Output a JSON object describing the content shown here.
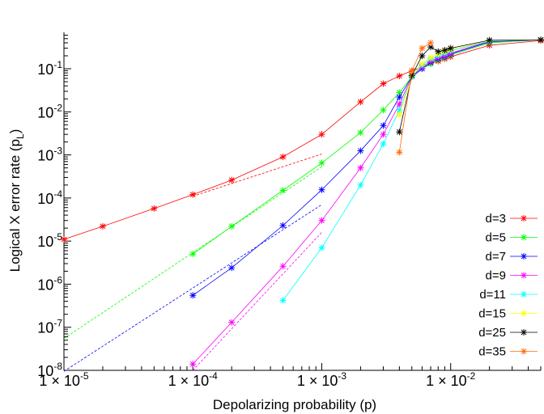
{
  "chart_data": {
    "type": "line",
    "title": "",
    "xlabel": "Depolarizing probability (p)",
    "ylabel": "Logical X error rate (p",
    "ylabel_subscript": "L",
    "ylabel_close": ")",
    "x_scale": "log",
    "y_scale": "log",
    "xlim": [
      1e-05,
      0.05
    ],
    "ylim": [
      1e-08,
      0.7
    ],
    "grid": false,
    "legend_position": "bottom-right",
    "x_ticks": [
      {
        "value": 1e-05,
        "mantissa": "1",
        "times": "×",
        "base": "10",
        "exp": "-5"
      },
      {
        "value": 0.0001,
        "mantissa": "1",
        "times": "×",
        "base": "10",
        "exp": "-4"
      },
      {
        "value": 0.001,
        "mantissa": "1",
        "times": "×",
        "base": "10",
        "exp": "-3"
      },
      {
        "value": 0.01,
        "mantissa": "1",
        "times": "×",
        "base": "10",
        "exp": "-2"
      }
    ],
    "y_ticks": [
      {
        "value": 1e-08,
        "base": "10",
        "exp": "-8"
      },
      {
        "value": 1e-07,
        "base": "10",
        "exp": "-7"
      },
      {
        "value": 1e-06,
        "base": "10",
        "exp": "-6"
      },
      {
        "value": 1e-05,
        "base": "10",
        "exp": "-5"
      },
      {
        "value": 0.0001,
        "base": "10",
        "exp": "-4"
      },
      {
        "value": 0.001,
        "base": "10",
        "exp": "-3"
      },
      {
        "value": 0.01,
        "base": "10",
        "exp": "-2"
      },
      {
        "value": 0.1,
        "base": "10",
        "exp": "-1"
      }
    ],
    "series": [
      {
        "name": "d=3",
        "color": "#ff0000",
        "points": [
          [
            1e-05,
            1.1e-05
          ],
          [
            2e-05,
            2.2e-05
          ],
          [
            5e-05,
            5.7e-05
          ],
          [
            0.0001,
            0.00012
          ],
          [
            0.0002,
            0.00026
          ],
          [
            0.0005,
            0.0009
          ],
          [
            0.001,
            0.003
          ],
          [
            0.002,
            0.017
          ],
          [
            0.003,
            0.045
          ],
          [
            0.004,
            0.068
          ],
          [
            0.005,
            0.09
          ],
          [
            0.006,
            0.11
          ],
          [
            0.007,
            0.13
          ],
          [
            0.008,
            0.15
          ],
          [
            0.009,
            0.17
          ],
          [
            0.01,
            0.19
          ],
          [
            0.02,
            0.35
          ],
          [
            0.05,
            0.45
          ]
        ],
        "fit": [
          [
            0.0001,
            0.00011
          ],
          [
            0.001,
            0.00105
          ]
        ]
      },
      {
        "name": "d=5",
        "color": "#00ff00",
        "points": [
          [
            0.0001,
            5e-06
          ],
          [
            0.0002,
            2.2e-05
          ],
          [
            0.0005,
            0.00015
          ],
          [
            0.001,
            0.00065
          ],
          [
            0.002,
            0.0033
          ],
          [
            0.003,
            0.011
          ],
          [
            0.004,
            0.028
          ],
          [
            0.005,
            0.065
          ],
          [
            0.006,
            0.1
          ],
          [
            0.007,
            0.13
          ],
          [
            0.008,
            0.16
          ],
          [
            0.009,
            0.18
          ],
          [
            0.01,
            0.21
          ],
          [
            0.02,
            0.4
          ],
          [
            0.05,
            0.47
          ]
        ],
        "fit": [
          [
            1e-05,
            5.5e-08
          ],
          [
            0.001,
            0.00053
          ]
        ]
      },
      {
        "name": "d=7",
        "color": "#0000ff",
        "points": [
          [
            0.0001,
            5.5e-07
          ],
          [
            0.0002,
            2.4e-06
          ],
          [
            0.0005,
            2.3e-05
          ],
          [
            0.001,
            0.000155
          ],
          [
            0.002,
            0.00125
          ],
          [
            0.003,
            0.0048
          ],
          [
            0.004,
            0.022
          ],
          [
            0.005,
            0.065
          ],
          [
            0.006,
            0.1
          ],
          [
            0.007,
            0.14
          ],
          [
            0.008,
            0.17
          ],
          [
            0.009,
            0.19
          ],
          [
            0.01,
            0.22
          ],
          [
            0.02,
            0.42
          ],
          [
            0.05,
            0.47
          ]
        ],
        "fit": [
          [
            1e-05,
            9.5e-09
          ],
          [
            0.001,
            7e-05
          ]
        ]
      },
      {
        "name": "d=9",
        "color": "#ff00ff",
        "points": [
          [
            0.0001,
            1.4e-08
          ],
          [
            0.0002,
            1.3e-07
          ],
          [
            0.0005,
            2.6e-06
          ],
          [
            0.001,
            3e-05
          ],
          [
            0.002,
            0.0005
          ],
          [
            0.003,
            0.003
          ],
          [
            0.004,
            0.015
          ],
          [
            0.005,
            0.065
          ],
          [
            0.006,
            0.11
          ],
          [
            0.007,
            0.15
          ],
          [
            0.008,
            0.18
          ],
          [
            0.009,
            0.2
          ],
          [
            0.01,
            0.23
          ],
          [
            0.02,
            0.44
          ],
          [
            0.05,
            0.47
          ]
        ],
        "fit": [
          [
            0.0001,
            1e-08
          ],
          [
            0.001,
            1.6e-05
          ]
        ]
      },
      {
        "name": "d=11",
        "color": "#00ffff",
        "points": [
          [
            0.0005,
            4.2e-07
          ],
          [
            0.001,
            7e-06
          ],
          [
            0.002,
            0.0002
          ],
          [
            0.003,
            0.0018
          ],
          [
            0.004,
            0.011
          ],
          [
            0.005,
            0.065
          ],
          [
            0.006,
            0.12
          ],
          [
            0.007,
            0.17
          ],
          [
            0.008,
            0.2
          ],
          [
            0.009,
            0.23
          ],
          [
            0.01,
            0.26
          ],
          [
            0.02,
            0.44
          ],
          [
            0.05,
            0.47
          ]
        ],
        "fit": []
      },
      {
        "name": "d=15",
        "color": "#ffff00",
        "points": [
          [
            0.004,
            0.0085
          ],
          [
            0.005,
            0.068
          ],
          [
            0.006,
            0.13
          ],
          [
            0.007,
            0.18
          ],
          [
            0.008,
            0.22
          ],
          [
            0.009,
            0.25
          ],
          [
            0.01,
            0.28
          ],
          [
            0.02,
            0.45
          ],
          [
            0.05,
            0.47
          ]
        ],
        "fit": []
      },
      {
        "name": "d=25",
        "color": "#000000",
        "points": [
          [
            0.004,
            0.0034
          ],
          [
            0.005,
            0.07
          ],
          [
            0.006,
            0.2
          ],
          [
            0.007,
            0.32
          ],
          [
            0.008,
            0.25
          ],
          [
            0.009,
            0.27
          ],
          [
            0.01,
            0.3
          ],
          [
            0.02,
            0.46
          ],
          [
            0.05,
            0.47
          ]
        ],
        "fit": []
      },
      {
        "name": "d=35",
        "color": "#ff6a00",
        "points": [
          [
            0.004,
            0.00115
          ],
          [
            0.005,
            0.09
          ],
          [
            0.006,
            0.3
          ],
          [
            0.007,
            0.4
          ]
        ],
        "fit": []
      }
    ]
  }
}
